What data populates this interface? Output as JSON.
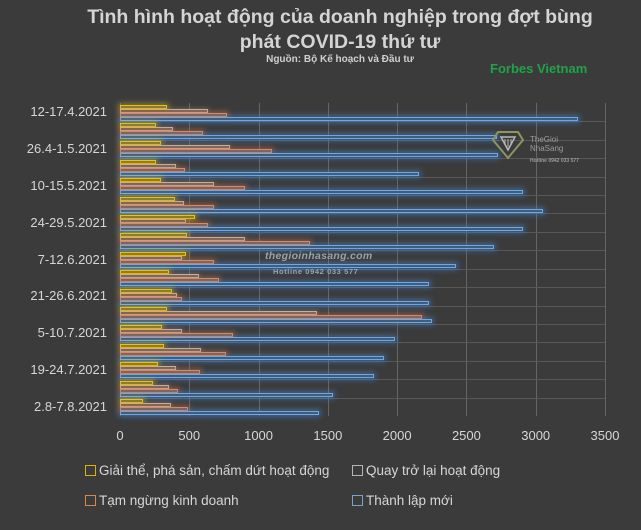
{
  "header": {
    "title_line1": "Tình hình hoạt động của doanh nghiệp trong đợt bùng",
    "title_line2": "phát COVID-19 thứ tư",
    "subtitle": "Nguồn: Bộ Kế hoạch và Đầu tư",
    "brand": "Forbes Vietnam"
  },
  "watermarks": {
    "logo_line1": "TheGioi",
    "logo_line2": "NhaSang",
    "logo_hotline": "Hotline 0942 033 577",
    "center_site": "thegioinhasang.com",
    "center_hotline": "Hotline 0942 033 577"
  },
  "colors": {
    "background": "#3b3b3b",
    "dissolved": "#f2c500",
    "resumed": "#c8b8a8",
    "suspended": "#f08a50",
    "new": "#6fa8e0",
    "brand": "#1fa34a"
  },
  "chart_data": {
    "type": "bar",
    "orientation": "horizontal",
    "title": "Tình hình hoạt động của doanh nghiệp trong đợt bùng phát COVID-19 thứ tư",
    "subtitle": "Nguồn: Bộ Kế hoạch và Đầu tư",
    "xlabel": "",
    "ylabel": "",
    "xlim": [
      0,
      3500
    ],
    "xticks": [
      "0",
      "500",
      "1000",
      "1500",
      "2000",
      "2500",
      "3000",
      "3500"
    ],
    "grid": true,
    "legend_position": "bottom",
    "category_labels_shown": [
      "12-17.4.2021",
      "",
      "26.4-1.5.2021",
      "",
      "10-15.5.2021",
      "",
      "24-29.5.2021",
      "",
      "7-12.6.2021",
      "",
      "21-26.6.2021",
      "",
      "5-10.7.2021",
      "",
      "19-24.7.2021",
      "",
      "2.8-7.8.2021"
    ],
    "categories": [
      "12-17.4.2021",
      "(unlabeled week)",
      "26.4-1.5.2021",
      "(unlabeled week)",
      "10-15.5.2021",
      "(unlabeled week)",
      "24-29.5.2021",
      "(unlabeled week)",
      "7-12.6.2021",
      "(unlabeled week)",
      "21-26.6.2021",
      "(unlabeled week)",
      "5-10.7.2021",
      "(unlabeled week)",
      "19-24.7.2021",
      "(unlabeled week)",
      "2.8-7.8.2021"
    ],
    "series": [
      {
        "name": "Giải thể, phá sản, chấm dứt hoạt động",
        "values": [
          340,
          260,
          295,
          260,
          295,
          395,
          540,
          485,
          475,
          355,
          375,
          340,
          305,
          320,
          275,
          240,
          165
        ]
      },
      {
        "name": "Quay trở lại hoạt động",
        "values": [
          635,
          385,
          795,
          405,
          680,
          460,
          475,
          900,
          450,
          570,
          410,
          1420,
          450,
          585,
          405,
          355,
          370
        ]
      },
      {
        "name": "Tạm ngừng kinh doanh",
        "values": [
          770,
          600,
          1095,
          470,
          900,
          680,
          635,
          1370,
          680,
          715,
          450,
          2180,
          815,
          765,
          575,
          420,
          490
        ]
      },
      {
        "name": "Thành lập mới",
        "values": [
          3305,
          2720,
          2730,
          2160,
          2905,
          3050,
          2910,
          2700,
          2425,
          2230,
          2230,
          2250,
          1985,
          1905,
          1830,
          1540,
          1435
        ]
      }
    ]
  },
  "legend": {
    "items": [
      {
        "label": "Giải thể, phá sản, chấm dứt hoạt động"
      },
      {
        "label": "Quay trở lại hoạt động"
      },
      {
        "label": "Tạm ngừng kinh doanh"
      },
      {
        "label": "Thành lập mới"
      }
    ]
  }
}
